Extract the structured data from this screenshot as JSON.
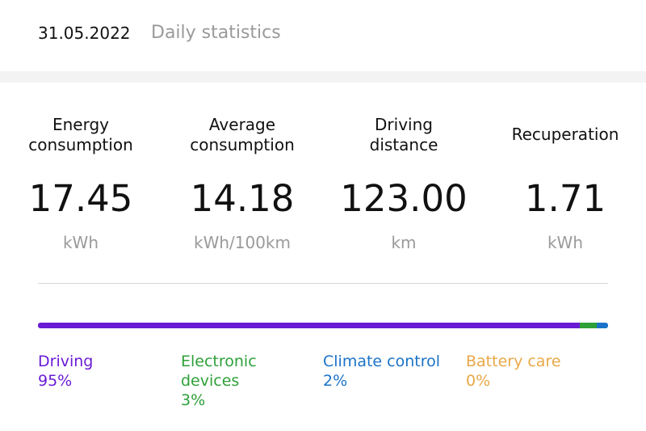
{
  "header": {
    "date": "31.05.2022",
    "title": "Daily statistics"
  },
  "stats": [
    {
      "label": "Energy\nconsumption",
      "value": "17.45",
      "unit": "kWh"
    },
    {
      "label": "Average\nconsumption",
      "value": "14.18",
      "unit": "kWh/100km"
    },
    {
      "label": "Driving\ndistance",
      "value": "123.00",
      "unit": "km"
    },
    {
      "label": "Recuperation",
      "value": "1.71",
      "unit": "kWh"
    }
  ],
  "breakdown": [
    {
      "name": "Driving",
      "percent": "95%",
      "fraction": 0.95,
      "color": "#6a1bd6"
    },
    {
      "name": "Electronic\ndevices",
      "percent": "3%",
      "fraction": 0.03,
      "color": "#2ea039"
    },
    {
      "name": "Climate control",
      "percent": "2%",
      "fraction": 0.02,
      "color": "#1a73c8"
    },
    {
      "name": "Battery care",
      "percent": "0%",
      "fraction": 0.0,
      "color": "#e8a846"
    }
  ]
}
